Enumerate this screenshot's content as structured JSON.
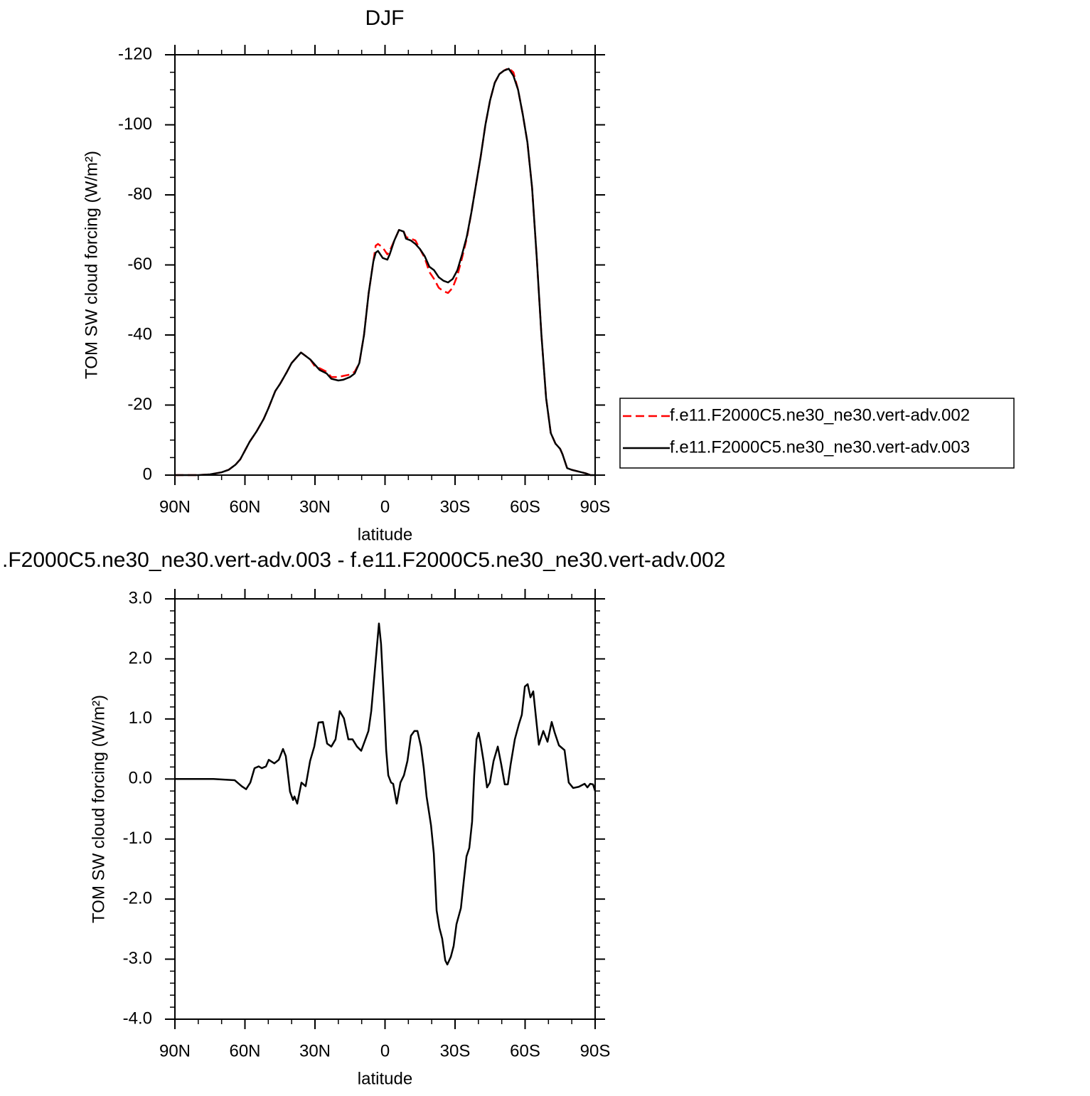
{
  "chart_data": [
    {
      "type": "line",
      "title": "DJF",
      "xlabel": "latitude",
      "ylabel": "TOM SW cloud forcing (W/m²)",
      "x": [
        90,
        85,
        80,
        75,
        70,
        67,
        64,
        62,
        60,
        58,
        55,
        52,
        50,
        47,
        45,
        42,
        40,
        38,
        36,
        34,
        32,
        30,
        28,
        25,
        23,
        20,
        18,
        15,
        13,
        11,
        9,
        7,
        5,
        4,
        3,
        1,
        -1,
        -2,
        -4,
        -6,
        -8,
        -9,
        -11,
        -13,
        -15,
        -17,
        -19,
        -21,
        -23,
        -25,
        -27,
        -29,
        -31,
        -33,
        -35,
        -37,
        -39,
        -41,
        -43,
        -45,
        -47,
        -49,
        -51,
        -53,
        -55,
        -57,
        -59,
        -61,
        -63,
        -65,
        -67,
        -69,
        -71,
        -73,
        -75,
        -76,
        -78,
        -80,
        -83,
        -86,
        -88,
        -90
      ],
      "series": [
        {
          "name": "f.e11.F2000C5.ne30_ne30.vert-adv.002",
          "color": "#ff0000",
          "linestyle": "dashed",
          "values": [
            0,
            0,
            0,
            -0.2,
            -0.8,
            -1.5,
            -3,
            -4.5,
            -7,
            -9.5,
            -12.5,
            -16,
            -19,
            -24,
            -26,
            -29.5,
            -32,
            -33.5,
            -35,
            -34,
            -33,
            -31,
            -30.5,
            -29.5,
            -28,
            -28,
            -28.3,
            -28.7,
            -29.5,
            -32,
            -40,
            -52,
            -61,
            -65.5,
            -66,
            -65,
            -63,
            -64,
            -67,
            -70,
            -69.5,
            -68,
            -67.5,
            -67,
            -64.5,
            -62,
            -58,
            -56,
            -53.5,
            -52.5,
            -52,
            -53.5,
            -57,
            -62,
            -67.5,
            -75,
            -83,
            -91,
            -100,
            -107,
            -112,
            -114.5,
            -115.5,
            -116.2,
            -115,
            -110,
            -103,
            -95,
            -82,
            -62,
            -40,
            -22,
            -12,
            -9,
            -7.5,
            -6,
            -2,
            -1.5,
            -1,
            -0.5,
            0,
            0
          ]
        },
        {
          "name": "f.e11.F2000C5.ne30_ne30.vert-adv.003",
          "color": "#000000",
          "linestyle": "solid",
          "values": [
            0,
            0,
            0,
            -0.2,
            -0.8,
            -1.5,
            -3,
            -4.5,
            -7,
            -9.5,
            -12.5,
            -16,
            -19,
            -24,
            -26,
            -29.5,
            -32,
            -33.5,
            -35,
            -34,
            -33,
            -31.5,
            -30,
            -29,
            -27.5,
            -27,
            -27.2,
            -28,
            -29,
            -32,
            -40,
            -52,
            -61,
            -63.5,
            -64,
            -62,
            -61.5,
            -63,
            -67,
            -70,
            -69.5,
            -67.5,
            -67,
            -66,
            -64.5,
            -62.5,
            -59.5,
            -58.5,
            -56.5,
            -55.5,
            -55,
            -56,
            -58.5,
            -63,
            -68,
            -75,
            -83,
            -91,
            -100,
            -107,
            -112,
            -114.5,
            -115.5,
            -116,
            -114,
            -110,
            -103,
            -95,
            -82,
            -62,
            -40,
            -22,
            -12,
            -9,
            -7.5,
            -6,
            -2,
            -1.5,
            -1,
            -0.5,
            0,
            0
          ]
        }
      ],
      "xlim": [
        90,
        -90
      ],
      "xticks": [
        {
          "value": 90,
          "label": "90N"
        },
        {
          "value": 60,
          "label": "60N"
        },
        {
          "value": 30,
          "label": "30N"
        },
        0,
        {
          "value": -30,
          "label": "30S"
        },
        {
          "value": -60,
          "label": "60S"
        },
        {
          "value": -90,
          "label": "90S"
        }
      ],
      "xminorticks": [
        80,
        70,
        50,
        40,
        20,
        10,
        -10,
        -20,
        -40,
        -50,
        -70,
        -80
      ],
      "ylim": [
        0,
        -120
      ],
      "yticks": [
        0,
        -20,
        -40,
        -60,
        -80,
        -100,
        -120
      ],
      "yminorticks": [
        -5,
        -10,
        -15,
        -25,
        -30,
        -35,
        -45,
        -50,
        -55,
        -65,
        -70,
        -75,
        -85,
        -90,
        -95,
        -105,
        -110,
        -115
      ],
      "legend": "right"
    },
    {
      "type": "line",
      "title": ".F2000C5.ne30_ne30.vert-adv.003 - f.e11.F2000C5.ne30_ne30.vert-adv.002",
      "xlabel": "latitude",
      "ylabel": "TOM SW cloud forcing (W/m²)",
      "x": [
        90,
        73.5,
        64.4,
        61.4,
        59.5,
        57.7,
        55.9,
        54.1,
        52.8,
        51,
        49.8,
        47.4,
        45.5,
        43.7,
        42.5,
        40.7,
        39.4,
        38.8,
        37.6,
        35.8,
        34,
        32.1,
        30.3,
        28.5,
        26.6,
        24.8,
        23,
        21.2,
        19.4,
        17.6,
        15.7,
        13.9,
        12,
        10.2,
        8.4,
        7.1,
        5.9,
        4.7,
        2.6,
        1.7,
        0.4,
        -0.5,
        -1.4,
        -2.6,
        -3.5,
        -5,
        -6.6,
        -8.1,
        -9.6,
        -11.1,
        -12.6,
        -13.9,
        -15.4,
        -16.6,
        -17.8,
        -19.7,
        -20.9,
        -22.1,
        -23.3,
        -24.5,
        -25.8,
        -26.7,
        -28.2,
        -29.4,
        -30.6,
        -32.5,
        -33.7,
        -34.9,
        -36.1,
        -37.3,
        -38.2,
        -39.2,
        -40.1,
        -41,
        -42.2,
        -43.7,
        -44.9,
        -46.5,
        -48.3,
        -49.8,
        -51.3,
        -52.6,
        -53.8,
        -55.6,
        -57.4,
        -58.6,
        -59.9,
        -61.1,
        -62.3,
        -63.5,
        -64.7,
        -65.9,
        -67.8,
        -69.6,
        -71.4,
        -72.7,
        -74.5,
        -76.9,
        -78.7,
        -80.6,
        -83,
        -85.5,
        -86.7,
        -87.9,
        -89.1,
        -90
      ],
      "series": [
        {
          "color": "#000000",
          "linestyle": "solid",
          "values": [
            0,
            0,
            -0.02,
            -0.12,
            -0.17,
            -0.06,
            0.18,
            0.21,
            0.18,
            0.21,
            0.32,
            0.26,
            0.32,
            0.5,
            0.38,
            -0.21,
            -0.35,
            -0.29,
            -0.41,
            -0.06,
            -0.12,
            0.3,
            0.54,
            0.94,
            0.95,
            0.59,
            0.54,
            0.66,
            1.13,
            1.01,
            0.66,
            0.66,
            0.54,
            0.47,
            0.66,
            0.8,
            1.13,
            1.66,
            2.59,
            2.25,
            1.25,
            0.48,
            0.06,
            -0.06,
            -0.08,
            -0.41,
            -0.06,
            0.06,
            0.3,
            0.72,
            0.8,
            0.8,
            0.54,
            0.18,
            -0.29,
            -0.77,
            -1.24,
            -2.19,
            -2.48,
            -2.66,
            -3.02,
            -3.09,
            -2.96,
            -2.78,
            -2.42,
            -2.15,
            -1.71,
            -1.29,
            -1.15,
            -0.71,
            0.06,
            0.66,
            0.77,
            0.59,
            0.3,
            -0.14,
            -0.06,
            0.3,
            0.54,
            0.24,
            -0.09,
            -0.09,
            0.24,
            0.66,
            0.92,
            1.07,
            1.54,
            1.58,
            1.36,
            1.46,
            1.01,
            0.57,
            0.8,
            0.62,
            0.95,
            0.77,
            0.56,
            0.48,
            -0.06,
            -0.15,
            -0.13,
            -0.08,
            -0.14,
            -0.08,
            -0.09,
            -0.2
          ]
        }
      ],
      "xlim": [
        90,
        -90
      ],
      "xticks": [
        {
          "value": 90,
          "label": "90N"
        },
        {
          "value": 60,
          "label": "60N"
        },
        {
          "value": 30,
          "label": "30N"
        },
        0,
        {
          "value": -30,
          "label": "30S"
        },
        {
          "value": -60,
          "label": "60S"
        },
        {
          "value": -90,
          "label": "90S"
        }
      ],
      "xminorticks": [
        80,
        70,
        50,
        40,
        20,
        10,
        -10,
        -20,
        -40,
        -50,
        -70,
        -80
      ],
      "ylim": [
        -4,
        3
      ],
      "yticks": [
        {
          "value": 3,
          "label": "3.0"
        },
        {
          "value": 2,
          "label": "2.0"
        },
        {
          "value": 1,
          "label": "1.0"
        },
        {
          "value": 0,
          "label": "0.0"
        },
        {
          "value": -1,
          "label": "-1.0"
        },
        {
          "value": -2,
          "label": "-2.0"
        },
        {
          "value": -3,
          "label": "-3.0"
        },
        {
          "value": -4,
          "label": "-4.0"
        }
      ],
      "yminorticks": [
        2.8,
        2.6,
        2.4,
        2.2,
        1.8,
        1.6,
        1.4,
        1.2,
        0.8,
        0.6,
        0.4,
        0.2,
        -0.2,
        -0.4,
        -0.6,
        -0.8,
        -1.2,
        -1.4,
        -1.6,
        -1.8,
        -2.2,
        -2.4,
        -2.6,
        -2.8,
        -3.2,
        -3.4,
        -3.6,
        -3.8
      ]
    }
  ]
}
